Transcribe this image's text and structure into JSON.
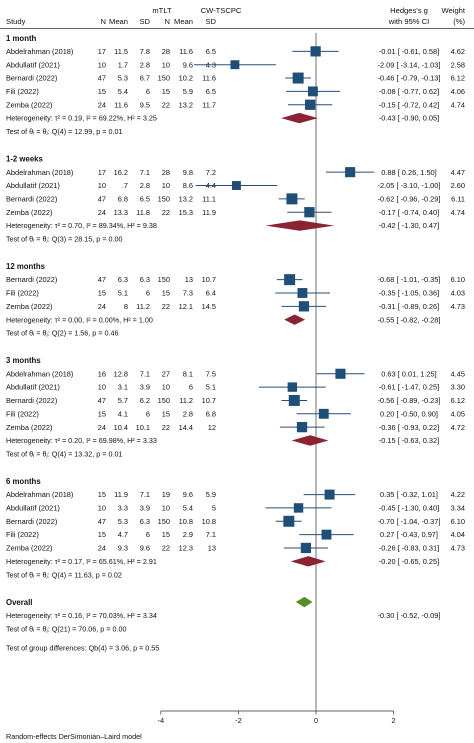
{
  "chart_data": {
    "type": "forest",
    "header": {
      "study": "Study",
      "arm1": "mTLT",
      "arm2": "CW-TSCPC",
      "n": "N",
      "mean": "Mean",
      "sd": "SD",
      "effect1": "Hedges's g",
      "effect2": "with 95% CI",
      "weight1": "Weight",
      "weight2": "(%)"
    },
    "x_axis": {
      "ticks": [
        -4,
        -2,
        0,
        2
      ],
      "xlim": [
        -4.8,
        2.5
      ],
      "reference_line": 0
    },
    "colors": {
      "study_marker": "#1f4e79",
      "summary_diamond": "#8b2332",
      "overall_diamond": "#5a8a2a",
      "line": "#2a4b7c"
    },
    "groups": [
      {
        "name": "1 month",
        "studies": [
          {
            "study": "Abdelrahman (2018)",
            "n1": "17",
            "mean1": "11.5",
            "sd1": "7.8",
            "n2": "28",
            "mean2": "11.6",
            "sd2": "6.5",
            "ci_text": "-0.01 [ -0.61,  0.58]",
            "weight": "4.62",
            "est": -0.01,
            "lo": -0.61,
            "hi": 0.58,
            "w": 4.62
          },
          {
            "study": "Abdullatif (2021)",
            "n1": "10",
            "mean1": "1.7",
            "sd1": "2.8",
            "n2": "10",
            "mean2": "9.6",
            "sd2": "4.3",
            "ci_text": "-2.09 [ -3.14, -1.03]",
            "weight": "2.58",
            "est": -2.09,
            "lo": -3.14,
            "hi": -1.03,
            "w": 2.58
          },
          {
            "study": "Bernardi (2022)",
            "n1": "47",
            "mean1": "5.3",
            "sd1": "6.7",
            "n2": "150",
            "mean2": "10.2",
            "sd2": "11.6",
            "ci_text": "-0.46 [ -0.79, -0.13]",
            "weight": "6.12",
            "est": -0.46,
            "lo": -0.79,
            "hi": -0.13,
            "w": 6.12
          },
          {
            "study": "Fili (2022)",
            "n1": "15",
            "mean1": "5.4",
            "sd1": "6",
            "n2": "15",
            "mean2": "5.9",
            "sd2": "6.5",
            "ci_text": "-0.08 [ -0.77,  0.62]",
            "weight": "4.06",
            "est": -0.08,
            "lo": -0.77,
            "hi": 0.62,
            "w": 4.06
          },
          {
            "study": "Zemba (2022)",
            "n1": "24",
            "mean1": "11.6",
            "sd1": "9.5",
            "n2": "22",
            "mean2": "13.2",
            "sd2": "11.7",
            "ci_text": "-0.15 [ -0.72,  0.42]",
            "weight": "4.74",
            "est": -0.15,
            "lo": -0.72,
            "hi": 0.42,
            "w": 4.74
          }
        ],
        "heterogeneity": "Heterogeneity: τ² = 0.19, I² = 69.22%, H² = 3.25",
        "summary": {
          "ci_text": "-0.43 [ -0.90,  0.05]",
          "est": -0.43,
          "lo": -0.9,
          "hi": 0.05
        },
        "test": "Test of θᵢ = θⱼ: Q(4) = 12.99, p = 0.01"
      },
      {
        "name": "1-2 weeks",
        "studies": [
          {
            "study": "Abdelrahman (2018)",
            "n1": "17",
            "mean1": "16.2",
            "sd1": "7.1",
            "n2": "28",
            "mean2": "9.8",
            "sd2": "7.2",
            "ci_text": "0.88 [  0.26,  1.50]",
            "weight": "4.47",
            "est": 0.88,
            "lo": 0.26,
            "hi": 1.5,
            "w": 4.47
          },
          {
            "study": "Abdullatif (2021)",
            "n1": "10",
            "mean1": ".7",
            "sd1": "2.8",
            "n2": "10",
            "mean2": "8.6",
            "sd2": "4.4",
            "ci_text": "-2.05 [ -3.10, -1.00]",
            "weight": "2.60",
            "est": -2.05,
            "lo": -3.1,
            "hi": -1.0,
            "w": 2.6
          },
          {
            "study": "Bernardi (2022)",
            "n1": "47",
            "mean1": "6.8",
            "sd1": "6.5",
            "n2": "150",
            "mean2": "13.2",
            "sd2": "11.1",
            "ci_text": "-0.62 [ -0.96, -0.29]",
            "weight": "6.11",
            "est": -0.62,
            "lo": -0.96,
            "hi": -0.29,
            "w": 6.11
          },
          {
            "study": "Zemba (2022)",
            "n1": "24",
            "mean1": "13.3",
            "sd1": "11.8",
            "n2": "22",
            "mean2": "15.3",
            "sd2": "11.9",
            "ci_text": "-0.17 [ -0.74,  0.40]",
            "weight": "4.74",
            "est": -0.17,
            "lo": -0.74,
            "hi": 0.4,
            "w": 4.74
          }
        ],
        "heterogeneity": "Heterogeneity: τ² = 0.70, I² = 89.34%, H² = 9.38",
        "summary": {
          "ci_text": "-0.42 [ -1.30,  0.47]",
          "est": -0.42,
          "lo": -1.3,
          "hi": 0.47
        },
        "test": "Test of θᵢ = θⱼ: Q(3) = 28.15, p = 0.00"
      },
      {
        "name": "12 months",
        "studies": [
          {
            "study": "Bernardi (2022)",
            "n1": "47",
            "mean1": "6.3",
            "sd1": "6.3",
            "n2": "150",
            "mean2": "13",
            "sd2": "10.7",
            "ci_text": "-0.68 [ -1.01, -0.35]",
            "weight": "6.10",
            "est": -0.68,
            "lo": -1.01,
            "hi": -0.35,
            "w": 6.1
          },
          {
            "study": "Fili (2022)",
            "n1": "15",
            "mean1": "5.1",
            "sd1": "6",
            "n2": "15",
            "mean2": "7.3",
            "sd2": "6.4",
            "ci_text": "-0.35 [ -1.05,  0.36]",
            "weight": "4.03",
            "est": -0.35,
            "lo": -1.05,
            "hi": 0.36,
            "w": 4.03
          },
          {
            "study": "Zemba (2022)",
            "n1": "24",
            "mean1": "8",
            "sd1": "11.2",
            "n2": "22",
            "mean2": "12.1",
            "sd2": "14.5",
            "ci_text": "-0.31 [ -0.89,  0.26]",
            "weight": "4.73",
            "est": -0.31,
            "lo": -0.89,
            "hi": 0.26,
            "w": 4.73
          }
        ],
        "heterogeneity": "Heterogeneity: τ² = 0.00, I² = 0.00%, H² = 1.00",
        "summary": {
          "ci_text": "-0.55 [ -0.82, -0.28]",
          "est": -0.55,
          "lo": -0.82,
          "hi": -0.28
        },
        "test": "Test of θᵢ = θⱼ: Q(2) = 1.56, p = 0.46"
      },
      {
        "name": "3 months",
        "studies": [
          {
            "study": "Abdelrahman (2018)",
            "n1": "16",
            "mean1": "12.8",
            "sd1": "7.1",
            "n2": "27",
            "mean2": "8.1",
            "sd2": "7.5",
            "ci_text": "0.63 [  0.01,  1.25]",
            "weight": "4.45",
            "est": 0.63,
            "lo": 0.01,
            "hi": 1.25,
            "w": 4.45
          },
          {
            "study": "Abdullatif (2021)",
            "n1": "10",
            "mean1": "3.1",
            "sd1": "3.9",
            "n2": "10",
            "mean2": "6",
            "sd2": "5.1",
            "ci_text": "-0.61 [ -1.47,  0.25]",
            "weight": "3.30",
            "est": -0.61,
            "lo": -1.47,
            "hi": 0.25,
            "w": 3.3
          },
          {
            "study": "Bernardi (2022)",
            "n1": "47",
            "mean1": "5.7",
            "sd1": "6.2",
            "n2": "150",
            "mean2": "11.2",
            "sd2": "10.7",
            "ci_text": "-0.56 [ -0.89, -0.23]",
            "weight": "6.12",
            "est": -0.56,
            "lo": -0.89,
            "hi": -0.23,
            "w": 6.12
          },
          {
            "study": "Fili (2022)",
            "n1": "15",
            "mean1": "4.1",
            "sd1": "6",
            "n2": "15",
            "mean2": "2.8",
            "sd2": "6.8",
            "ci_text": "0.20 [ -0.50,  0.90]",
            "weight": "4.05",
            "est": 0.2,
            "lo": -0.5,
            "hi": 0.9,
            "w": 4.05
          },
          {
            "study": "Zemba (2022)",
            "n1": "24",
            "mean1": "10.4",
            "sd1": "10.1",
            "n2": "22",
            "mean2": "14.4",
            "sd2": "12",
            "ci_text": "-0.36 [ -0.93,  0.22]",
            "weight": "4.72",
            "est": -0.36,
            "lo": -0.93,
            "hi": 0.22,
            "w": 4.72
          }
        ],
        "heterogeneity": "Heterogeneity: τ² = 0.20, I² = 69.98%, H² = 3.33",
        "summary": {
          "ci_text": "-0.15 [ -0.63,  0.32]",
          "est": -0.15,
          "lo": -0.63,
          "hi": 0.32
        },
        "test": "Test of θᵢ = θⱼ: Q(4) = 13.32, p = 0.01"
      },
      {
        "name": "6 months",
        "studies": [
          {
            "study": "Abdelrahman (2018)",
            "n1": "15",
            "mean1": "11.9",
            "sd1": "7.1",
            "n2": "19",
            "mean2": "9.6",
            "sd2": "5.9",
            "ci_text": "0.35 [ -0.32,  1.01]",
            "weight": "4.22",
            "est": 0.35,
            "lo": -0.32,
            "hi": 1.01,
            "w": 4.22
          },
          {
            "study": "Abdullatif (2021)",
            "n1": "10",
            "mean1": "3.3",
            "sd1": "3.9",
            "n2": "10",
            "mean2": "5.4",
            "sd2": "5",
            "ci_text": "-0.45 [ -1.30,  0.40]",
            "weight": "3.34",
            "est": -0.45,
            "lo": -1.3,
            "hi": 0.4,
            "w": 3.34
          },
          {
            "study": "Bernardi (2022)",
            "n1": "47",
            "mean1": "5.3",
            "sd1": "6.3",
            "n2": "150",
            "mean2": "10.8",
            "sd2": "10.8",
            "ci_text": "-0.70 [ -1.04, -0.37]",
            "weight": "6.10",
            "est": -0.7,
            "lo": -1.04,
            "hi": -0.37,
            "w": 6.1
          },
          {
            "study": "Fili (2022)",
            "n1": "15",
            "mean1": "4.7",
            "sd1": "6",
            "n2": "15",
            "mean2": "2.9",
            "sd2": "7.1",
            "ci_text": "0.27 [ -0.43,  0.97]",
            "weight": "4.04",
            "est": 0.27,
            "lo": -0.43,
            "hi": 0.97,
            "w": 4.04
          },
          {
            "study": "Zemba (2022)",
            "n1": "24",
            "mean1": "9.3",
            "sd1": "9.6",
            "n2": "22",
            "mean2": "12.3",
            "sd2": "13",
            "ci_text": "-0.26 [ -0.83,  0.31]",
            "weight": "4.73",
            "est": -0.26,
            "lo": -0.83,
            "hi": 0.31,
            "w": 4.73
          }
        ],
        "heterogeneity": "Heterogeneity: τ² = 0.17, I² = 65.61%, H² = 2.91",
        "summary": {
          "ci_text": "-0.20 [ -0.65,  0.25]",
          "est": -0.2,
          "lo": -0.65,
          "hi": 0.25
        },
        "test": "Test of θᵢ = θⱼ: Q(4) = 11.63, p = 0.02"
      }
    ],
    "overall": {
      "name": "Overall",
      "heterogeneity": "Heterogeneity: τ² = 0.16, I² = 70.03%, H² = 3.34",
      "summary": {
        "ci_text": "-0.30 [ -0.52, -0.09]",
        "est": -0.3,
        "lo": -0.52,
        "hi": -0.09
      },
      "test": "Test of θᵢ = θⱼ: Q(21) = 70.06, p = 0.00",
      "group_test": "Test of group differences: Qb(4) = 3.06, p = 0.55"
    },
    "footnote": "Random-effects DerSimonian–Laird model"
  }
}
